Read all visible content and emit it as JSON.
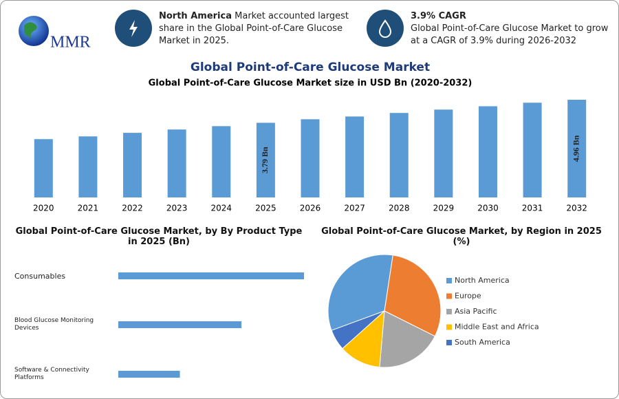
{
  "header": {
    "logo": "MMR",
    "cards": [
      {
        "highlight": "North America",
        "text": "Market accounted largest share in the Global Point-of-Care Glucose Market in 2025."
      },
      {
        "highlight": "3.9% CAGR",
        "text": "Global Point-of-Care Glucose Market to grow at a CAGR of 3.9% during 2026-2032"
      }
    ]
  },
  "title": "Global Point-of-Care Glucose Market",
  "chart_data": [
    {
      "type": "bar",
      "title": "Global Point-of-Care Glucose Market size in USD Bn (2020-2032)",
      "categories": [
        "2020",
        "2021",
        "2022",
        "2023",
        "2024",
        "2025",
        "2026",
        "2027",
        "2028",
        "2029",
        "2030",
        "2031",
        "2032"
      ],
      "values": [
        2.96,
        3.1,
        3.28,
        3.45,
        3.62,
        3.79,
        3.97,
        4.11,
        4.29,
        4.46,
        4.63,
        4.81,
        4.96
      ],
      "value_labels": [
        null,
        null,
        null,
        null,
        null,
        "3.79 Bn",
        null,
        null,
        null,
        null,
        null,
        null,
        "4.96 Bn"
      ],
      "color": "#5b9bd5"
    },
    {
      "type": "hbar",
      "title": "Global Point-of-Care Glucose Market, by By Product Type in 2025 (Bn)",
      "categories": [
        "Consumables",
        "Blood Glucose Monitoring Devices",
        "Software & Connectivity Platforms"
      ],
      "values": [
        1.9,
        1.26,
        0.63
      ],
      "color": "#5b9bd5"
    },
    {
      "type": "pie",
      "title": "Global Point-of-Care Glucose Market, by Region in 2025 (%)",
      "categories": [
        "North America",
        "Europe",
        "Asia Pacific",
        "Middle East and Africa",
        "South America"
      ],
      "values": [
        33,
        30,
        19,
        12,
        6
      ],
      "colors": [
        "#5b9bd5",
        "#ed7d31",
        "#a5a5a5",
        "#ffc000",
        "#4472c4"
      ],
      "legend": "right"
    }
  ]
}
